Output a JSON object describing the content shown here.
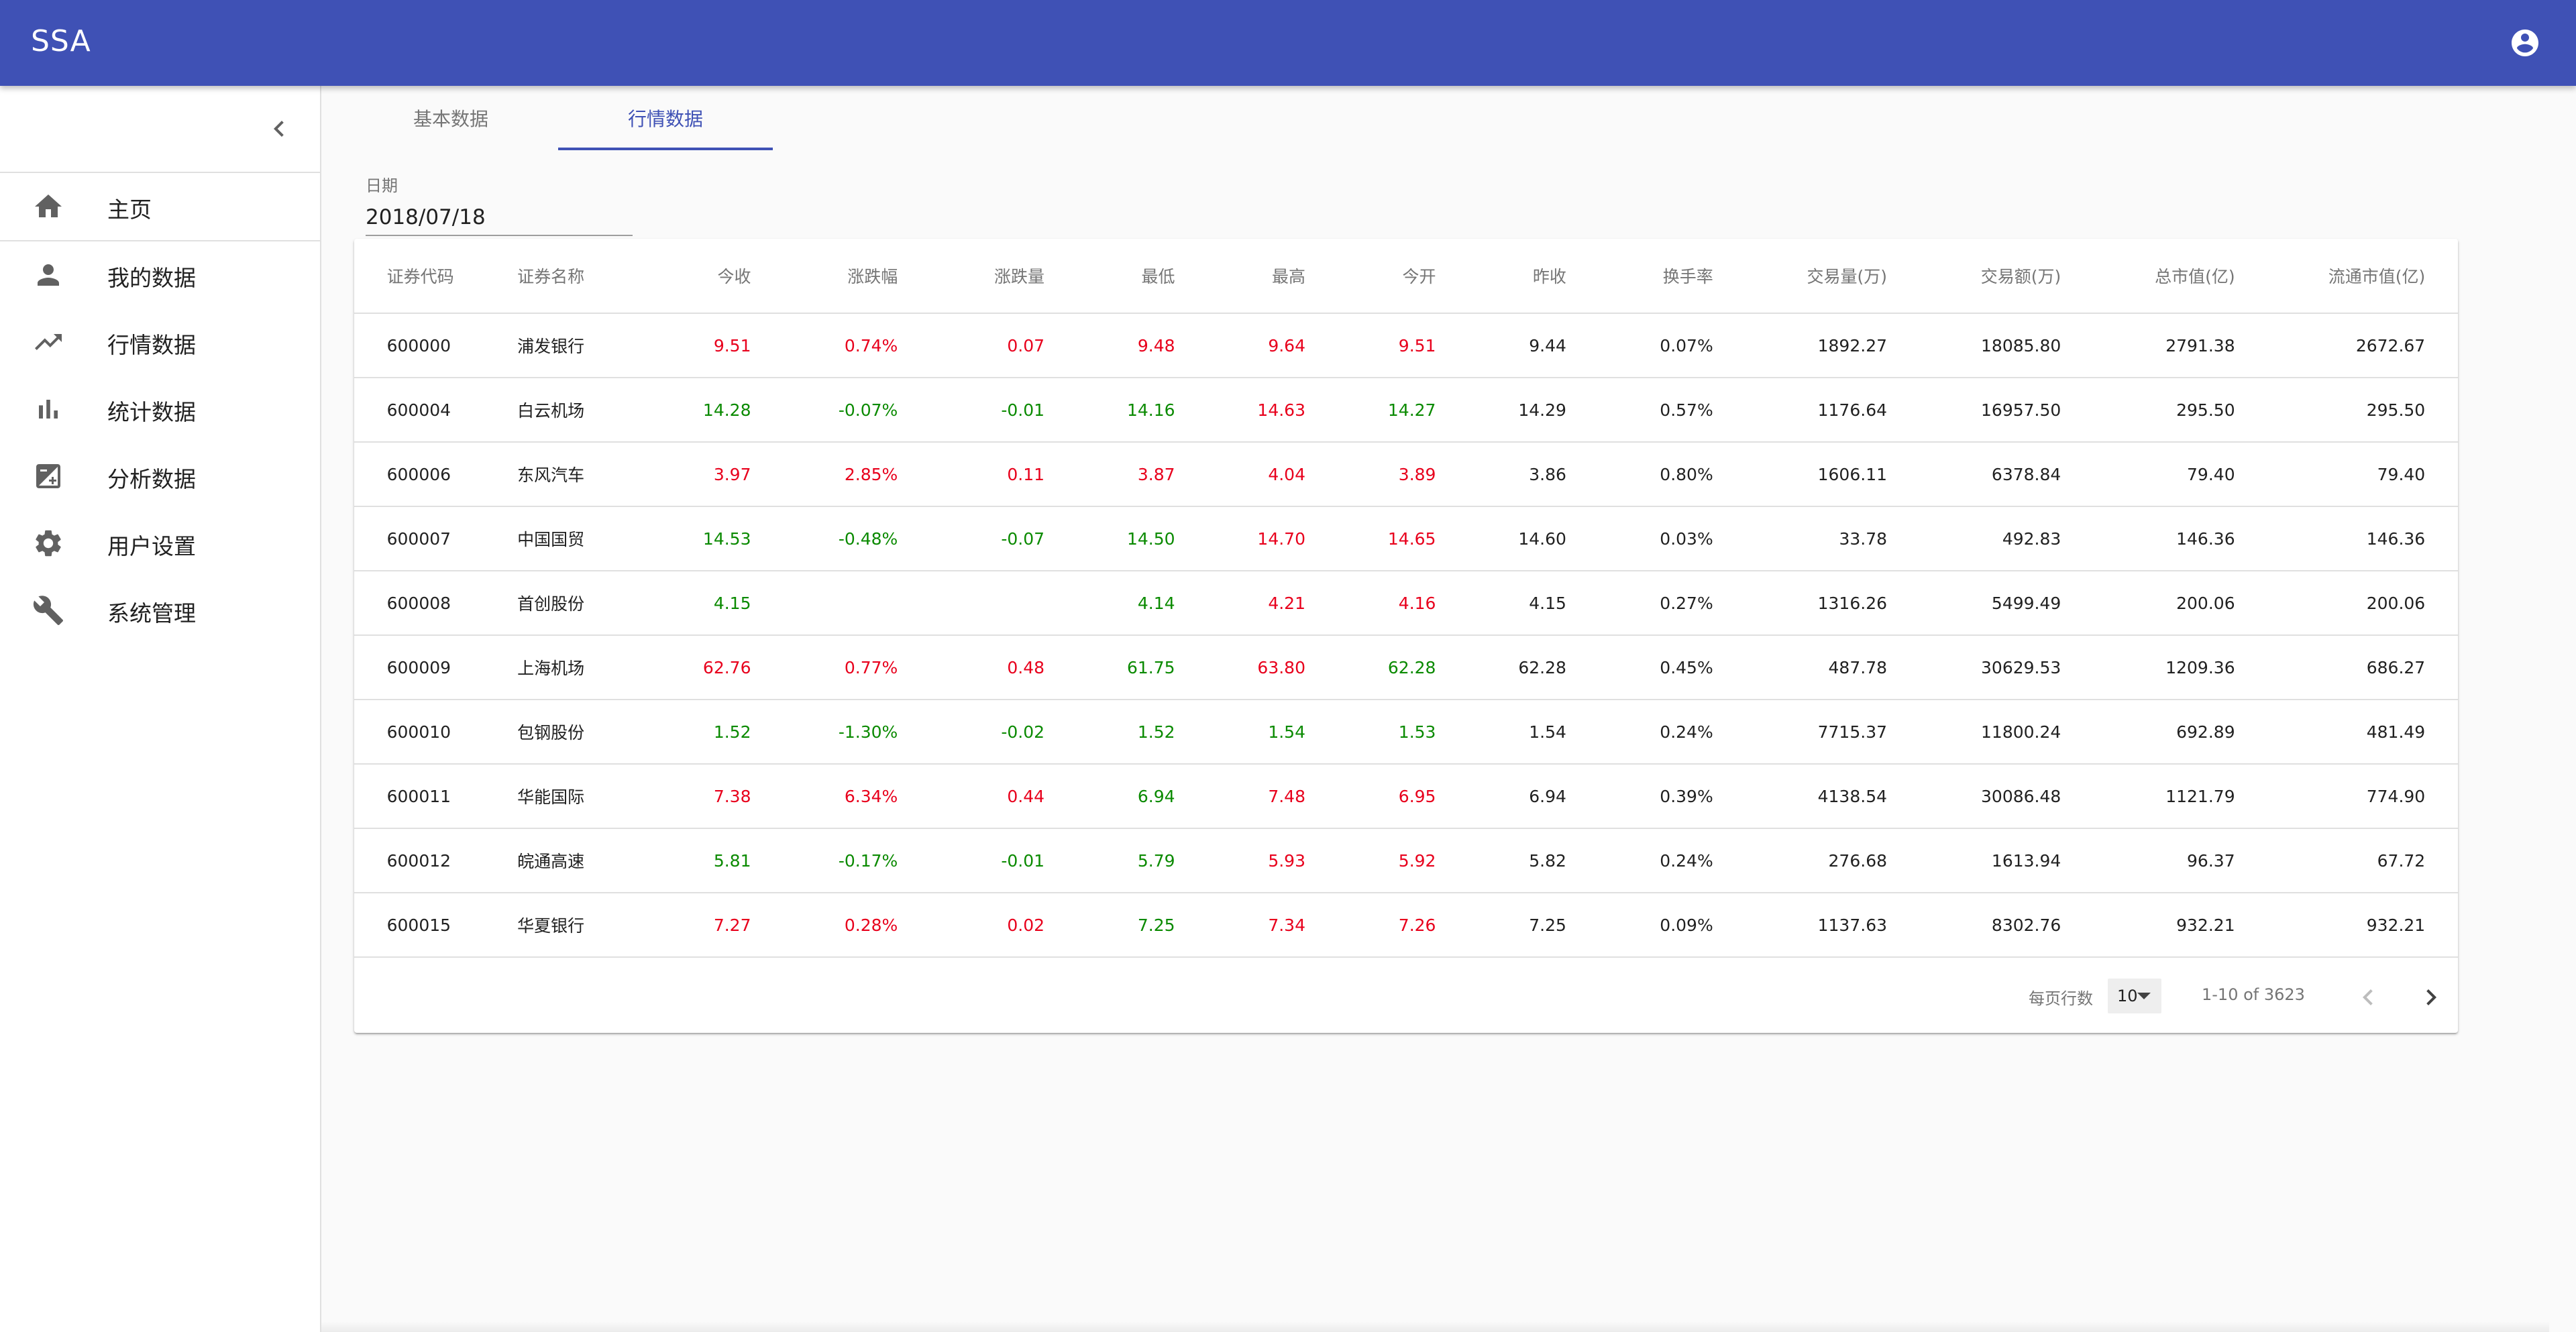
{
  "app": {
    "title": "SSA"
  },
  "sidebar": {
    "items": [
      {
        "label": "主页",
        "icon": "home-icon"
      },
      {
        "label": "我的数据",
        "icon": "person-icon"
      },
      {
        "label": "行情数据",
        "icon": "trending-up-icon"
      },
      {
        "label": "统计数据",
        "icon": "bar-chart-icon"
      },
      {
        "label": "分析数据",
        "icon": "analysis-icon"
      },
      {
        "label": "用户设置",
        "icon": "gear-icon"
      },
      {
        "label": "系统管理",
        "icon": "wrench-icon"
      }
    ]
  },
  "tabs": [
    {
      "label": "基本数据",
      "active": false
    },
    {
      "label": "行情数据",
      "active": true
    }
  ],
  "filter": {
    "date_label": "日期",
    "date_value": "2018/07/18"
  },
  "colors": {
    "primary": "#3f51b5",
    "up": "#e8001c",
    "down": "#0a8a00"
  },
  "table": {
    "headers": [
      "证券代码",
      "证券名称",
      "今收",
      "涨跌幅",
      "涨跌量",
      "最低",
      "最高",
      "今开",
      "昨收",
      "换手率",
      "交易量(万)",
      "交易额(万)",
      "总市值(亿)",
      "流通市值(亿)"
    ],
    "rows": [
      {
        "cells": [
          "600000",
          "浦发银行",
          "9.51",
          "0.74%",
          "0.07",
          "9.48",
          "9.64",
          "9.51",
          "9.44",
          "0.07%",
          "1892.27",
          "18085.80",
          "2791.38",
          "2672.67"
        ],
        "colors": [
          "",
          "",
          "up",
          "up",
          "up",
          "up",
          "up",
          "up",
          "",
          "",
          "",
          "",
          "",
          ""
        ]
      },
      {
        "cells": [
          "600004",
          "白云机场",
          "14.28",
          "-0.07%",
          "-0.01",
          "14.16",
          "14.63",
          "14.27",
          "14.29",
          "0.57%",
          "1176.64",
          "16957.50",
          "295.50",
          "295.50"
        ],
        "colors": [
          "",
          "",
          "down",
          "down",
          "down",
          "down",
          "up",
          "down",
          "",
          "",
          "",
          "",
          "",
          ""
        ]
      },
      {
        "cells": [
          "600006",
          "东风汽车",
          "3.97",
          "2.85%",
          "0.11",
          "3.87",
          "4.04",
          "3.89",
          "3.86",
          "0.80%",
          "1606.11",
          "6378.84",
          "79.40",
          "79.40"
        ],
        "colors": [
          "",
          "",
          "up",
          "up",
          "up",
          "up",
          "up",
          "up",
          "",
          "",
          "",
          "",
          "",
          ""
        ]
      },
      {
        "cells": [
          "600007",
          "中国国贸",
          "14.53",
          "-0.48%",
          "-0.07",
          "14.50",
          "14.70",
          "14.65",
          "14.60",
          "0.03%",
          "33.78",
          "492.83",
          "146.36",
          "146.36"
        ],
        "colors": [
          "",
          "",
          "down",
          "down",
          "down",
          "down",
          "up",
          "up",
          "",
          "",
          "",
          "",
          "",
          ""
        ]
      },
      {
        "cells": [
          "600008",
          "首创股份",
          "4.15",
          "",
          "",
          "4.14",
          "4.21",
          "4.16",
          "4.15",
          "0.27%",
          "1316.26",
          "5499.49",
          "200.06",
          "200.06"
        ],
        "colors": [
          "",
          "",
          "down",
          "",
          "",
          "down",
          "up",
          "up",
          "",
          "",
          "",
          "",
          "",
          ""
        ]
      },
      {
        "cells": [
          "600009",
          "上海机场",
          "62.76",
          "0.77%",
          "0.48",
          "61.75",
          "63.80",
          "62.28",
          "62.28",
          "0.45%",
          "487.78",
          "30629.53",
          "1209.36",
          "686.27"
        ],
        "colors": [
          "",
          "",
          "up",
          "up",
          "up",
          "down",
          "up",
          "down",
          "",
          "",
          "",
          "",
          "",
          ""
        ]
      },
      {
        "cells": [
          "600010",
          "包钢股份",
          "1.52",
          "-1.30%",
          "-0.02",
          "1.52",
          "1.54",
          "1.53",
          "1.54",
          "0.24%",
          "7715.37",
          "11800.24",
          "692.89",
          "481.49"
        ],
        "colors": [
          "",
          "",
          "down",
          "down",
          "down",
          "down",
          "down",
          "down",
          "",
          "",
          "",
          "",
          "",
          ""
        ]
      },
      {
        "cells": [
          "600011",
          "华能国际",
          "7.38",
          "6.34%",
          "0.44",
          "6.94",
          "7.48",
          "6.95",
          "6.94",
          "0.39%",
          "4138.54",
          "30086.48",
          "1121.79",
          "774.90"
        ],
        "colors": [
          "",
          "",
          "up",
          "up",
          "up",
          "down",
          "up",
          "up",
          "",
          "",
          "",
          "",
          "",
          ""
        ]
      },
      {
        "cells": [
          "600012",
          "皖通高速",
          "5.81",
          "-0.17%",
          "-0.01",
          "5.79",
          "5.93",
          "5.92",
          "5.82",
          "0.24%",
          "276.68",
          "1613.94",
          "96.37",
          "67.72"
        ],
        "colors": [
          "",
          "",
          "down",
          "down",
          "down",
          "down",
          "up",
          "up",
          "",
          "",
          "",
          "",
          "",
          ""
        ]
      },
      {
        "cells": [
          "600015",
          "华夏银行",
          "7.27",
          "0.28%",
          "0.02",
          "7.25",
          "7.34",
          "7.26",
          "7.25",
          "0.09%",
          "1137.63",
          "8302.76",
          "932.21",
          "932.21"
        ],
        "colors": [
          "",
          "",
          "up",
          "up",
          "up",
          "down",
          "up",
          "up",
          "",
          "",
          "",
          "",
          "",
          ""
        ]
      }
    ]
  },
  "pagination": {
    "rows_per_page_label": "每页行数",
    "rows_per_page": "10",
    "range": "1-10 of 3623"
  }
}
